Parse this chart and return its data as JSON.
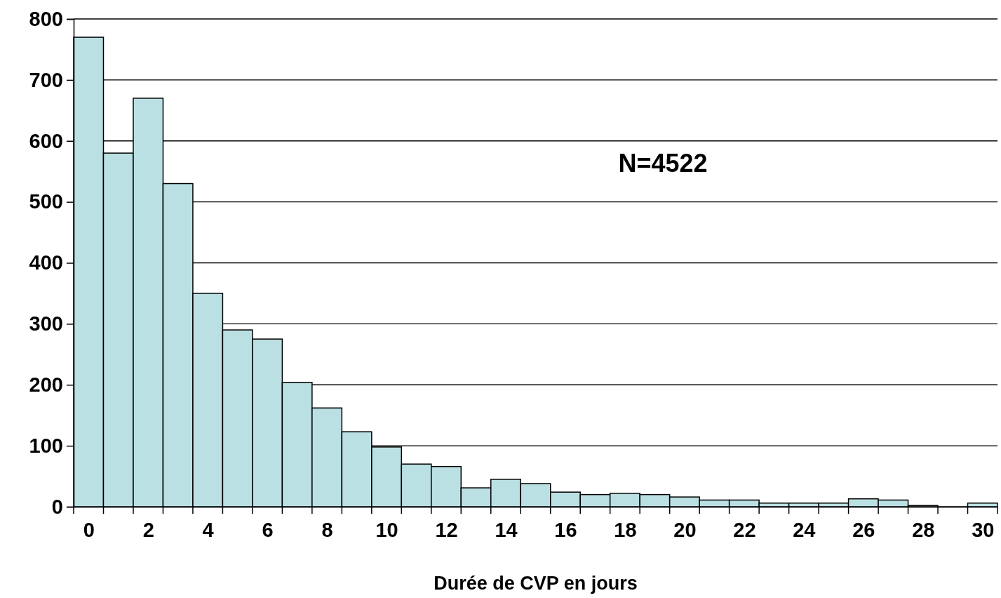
{
  "chart_data": {
    "type": "bar",
    "xlabel": "Durée de CVP en jours",
    "x": [
      0,
      1,
      2,
      3,
      4,
      5,
      6,
      7,
      8,
      9,
      10,
      11,
      12,
      13,
      14,
      15,
      16,
      17,
      18,
      19,
      20,
      21,
      22,
      23,
      24,
      25,
      26,
      27,
      28,
      29,
      30
    ],
    "values": [
      770,
      580,
      670,
      530,
      350,
      290,
      275,
      204,
      162,
      123,
      98,
      70,
      66,
      31,
      45,
      38,
      24,
      20,
      22,
      20,
      16,
      11,
      11,
      6,
      6,
      6,
      13,
      11,
      2,
      0,
      6
    ],
    "color": "#bbe0e3",
    "xlim": [
      -0.5,
      30.5
    ],
    "xticks": [
      0,
      2,
      4,
      6,
      8,
      10,
      12,
      14,
      16,
      18,
      20,
      22,
      24,
      26,
      28,
      30
    ],
    "ylim": [
      0,
      800
    ],
    "yticks": [
      0,
      100,
      200,
      300,
      400,
      500,
      600,
      700,
      800
    ],
    "grid": "y",
    "annotations": [
      "N=4522"
    ]
  }
}
